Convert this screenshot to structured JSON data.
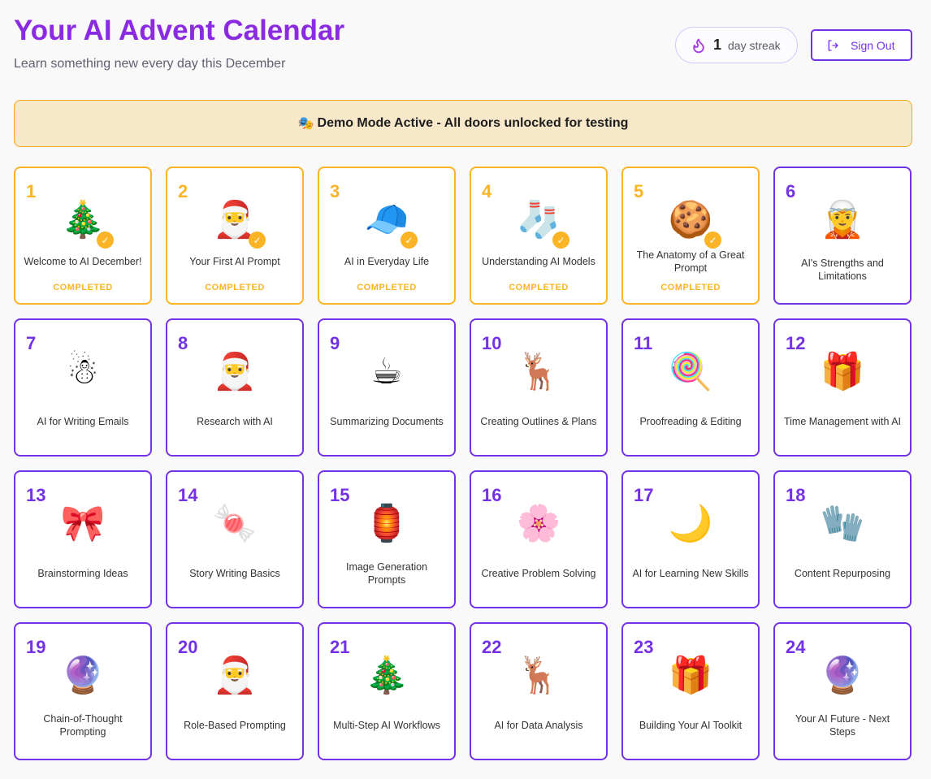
{
  "header": {
    "title": "Your AI Advent Calendar",
    "subtitle": "Learn something new every day this December"
  },
  "streak": {
    "icon": "flame-icon",
    "count": "1",
    "label": "day streak"
  },
  "sign_out": {
    "icon": "sign-out-icon",
    "label": "Sign Out"
  },
  "banner": {
    "icon": "🎭",
    "text": "Demo Mode Active - All doors unlocked for testing"
  },
  "colors": {
    "accent": "#7432e6",
    "title": "#8a2be2",
    "completed": "#fbb426",
    "banner_bg": "#f6e8c9"
  },
  "days": [
    {
      "n": "1",
      "title": "Welcome to AI December!",
      "icon": "🎄",
      "status": "COMPLETED"
    },
    {
      "n": "2",
      "title": "Your First AI Prompt",
      "icon": "🎅",
      "status": "COMPLETED"
    },
    {
      "n": "3",
      "title": "AI in Everyday Life",
      "icon": "🧢",
      "status": "COMPLETED"
    },
    {
      "n": "4",
      "title": "Understanding AI Models",
      "icon": "🧦",
      "status": "COMPLETED"
    },
    {
      "n": "5",
      "title": "The Anatomy of a Great Prompt",
      "icon": "🍪",
      "status": "COMPLETED"
    },
    {
      "n": "6",
      "title": "AI's Strengths and Limitations",
      "icon": "🧝"
    },
    {
      "n": "7",
      "title": "AI for Writing Emails",
      "icon": "☃"
    },
    {
      "n": "8",
      "title": "Research with AI",
      "icon": "🎅"
    },
    {
      "n": "9",
      "title": "Summarizing Documents",
      "icon": "☕"
    },
    {
      "n": "10",
      "title": "Creating Outlines & Plans",
      "icon": "🦌"
    },
    {
      "n": "11",
      "title": "Proofreading & Editing",
      "icon": "🍭"
    },
    {
      "n": "12",
      "title": "Time Management with AI",
      "icon": "🎁"
    },
    {
      "n": "13",
      "title": "Brainstorming Ideas",
      "icon": "🎀"
    },
    {
      "n": "14",
      "title": "Story Writing Basics",
      "icon": "🍬"
    },
    {
      "n": "15",
      "title": "Image Generation Prompts",
      "icon": "🏮"
    },
    {
      "n": "16",
      "title": "Creative Problem Solving",
      "icon": "🌸"
    },
    {
      "n": "17",
      "title": "AI for Learning New Skills",
      "icon": "🌙"
    },
    {
      "n": "18",
      "title": "Content Repurposing",
      "icon": "🧤"
    },
    {
      "n": "19",
      "title": "Chain-of-Thought Prompting",
      "icon": "🔮"
    },
    {
      "n": "20",
      "title": "Role-Based Prompting",
      "icon": "🎅"
    },
    {
      "n": "21",
      "title": "Multi-Step AI Workflows",
      "icon": "🎄"
    },
    {
      "n": "22",
      "title": "AI for Data Analysis",
      "icon": "🦌"
    },
    {
      "n": "23",
      "title": "Building Your AI Toolkit",
      "icon": "🎁"
    },
    {
      "n": "24",
      "title": "Your AI Future - Next Steps",
      "icon": "🔮"
    }
  ]
}
